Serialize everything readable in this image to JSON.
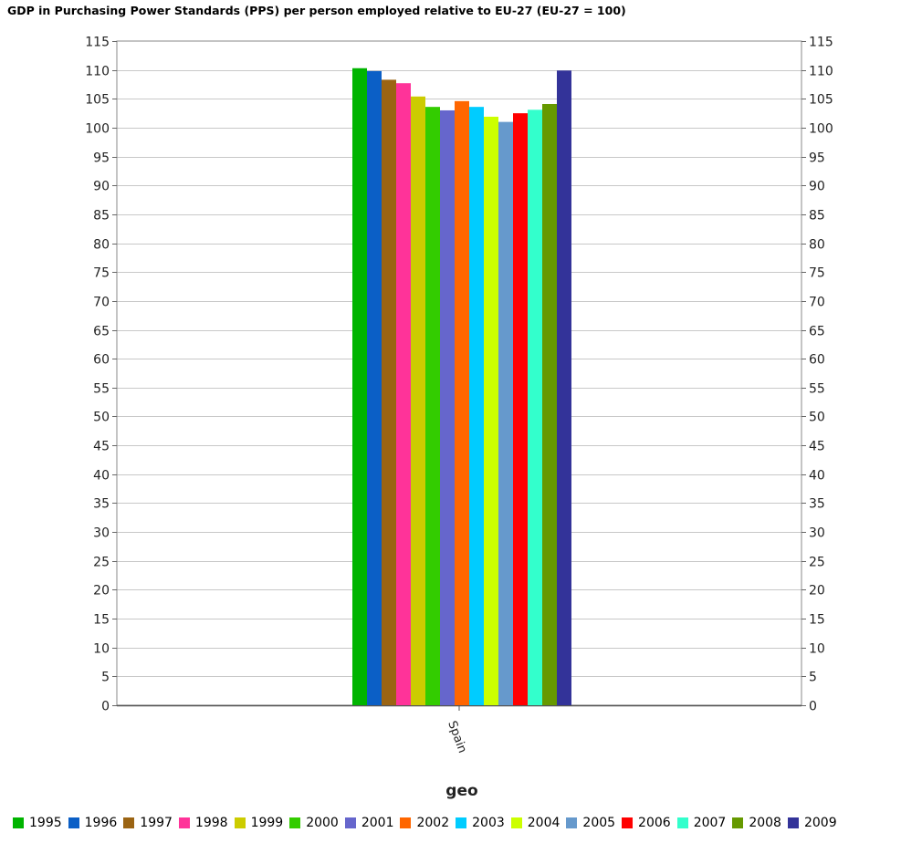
{
  "chart_data": {
    "type": "bar",
    "title": "GDP in Purchasing Power Standards (PPS) per person employed relative to EU-27 (EU-27 = 100)",
    "xlabel": "geo",
    "ylabel": "",
    "categories": [
      "Spain"
    ],
    "ylim": [
      0,
      115
    ],
    "ytick_step": 5,
    "grid": true,
    "legend_position": "bottom",
    "series": [
      {
        "name": "1995",
        "values": [
          110.3
        ],
        "color": "#00b400"
      },
      {
        "name": "1996",
        "values": [
          109.8
        ],
        "color": "#0b5fc6"
      },
      {
        "name": "1997",
        "values": [
          108.3
        ],
        "color": "#9b6413"
      },
      {
        "name": "1998",
        "values": [
          107.7
        ],
        "color": "#ff3399"
      },
      {
        "name": "1999",
        "values": [
          105.4
        ],
        "color": "#cccc00"
      },
      {
        "name": "2000",
        "values": [
          103.6
        ],
        "color": "#33cc00"
      },
      {
        "name": "2001",
        "values": [
          103.0
        ],
        "color": "#6666cc"
      },
      {
        "name": "2002",
        "values": [
          104.6
        ],
        "color": "#ff6600"
      },
      {
        "name": "2003",
        "values": [
          103.6
        ],
        "color": "#00ccff"
      },
      {
        "name": "2004",
        "values": [
          101.9
        ],
        "color": "#ccff00"
      },
      {
        "name": "2005",
        "values": [
          101.0
        ],
        "color": "#6699cc"
      },
      {
        "name": "2006",
        "values": [
          102.5
        ],
        "color": "#ff0000"
      },
      {
        "name": "2007",
        "values": [
          103.1
        ],
        "color": "#33ffcc"
      },
      {
        "name": "2008",
        "values": [
          104.1
        ],
        "color": "#669900"
      },
      {
        "name": "2009",
        "values": [
          109.9
        ],
        "color": "#333399"
      }
    ]
  }
}
